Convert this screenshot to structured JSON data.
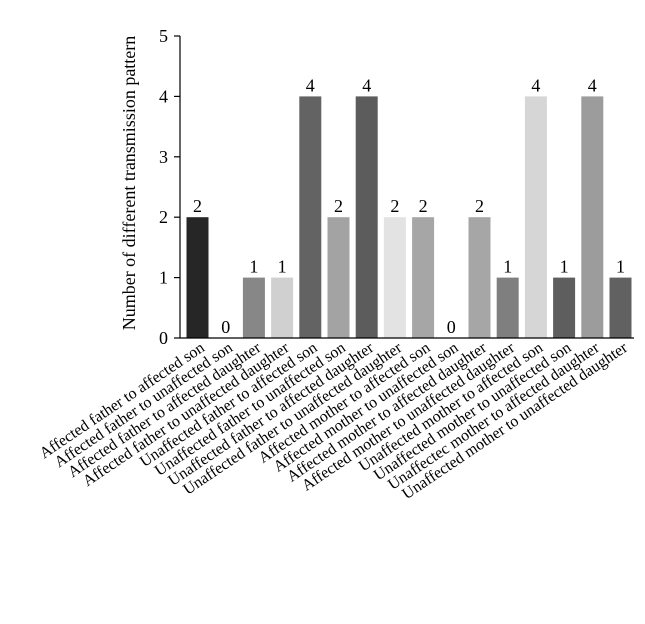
{
  "chart_data": {
    "type": "bar",
    "title": "",
    "xlabel": "",
    "ylabel": "Number of different transmission pattern",
    "ylim": [
      0,
      5
    ],
    "yticks": [
      0,
      1,
      2,
      3,
      4,
      5
    ],
    "grid": false,
    "categories": [
      "Affected father to affected son",
      "Affected father to unaffected son",
      "Affected father to affected daughter",
      "Affected father to unaffected daughter",
      "Unaffected father to affected son",
      "Unaffected father to unaffected son",
      "Unaffected father to affected daughter",
      "Unaffected father to unaffected daughter",
      "Affected mother to affected son",
      "Affected mother to unaffected son",
      "Affected mother to affected daughter",
      "Affected mother to unaffected daughter",
      "Unaffected mother to affected son",
      "Unaffected mother to unaffected son",
      "Unaffectec mother to affected daughter",
      "Unaffected mother to unaffected daughter"
    ],
    "values": [
      2,
      0,
      1,
      1,
      4,
      2,
      4,
      2,
      2,
      0,
      2,
      1,
      4,
      1,
      4,
      1
    ],
    "data_labels": [
      "2",
      "0",
      "1",
      "1",
      "4",
      "2",
      "4",
      "2",
      "2",
      "0",
      "2",
      "1",
      "4",
      "1",
      "4",
      "1"
    ],
    "colors": [
      "#262626",
      "#8c8c8c",
      "#878787",
      "#d0d0d0",
      "#636363",
      "#a3a3a3",
      "#5c5c5c",
      "#e3e3e3",
      "#a6a6a6",
      "#bdbdbd",
      "#a6a6a6",
      "#7f7f7f",
      "#d6d6d6",
      "#5e5e5e",
      "#9c9c9c",
      "#616161"
    ]
  }
}
